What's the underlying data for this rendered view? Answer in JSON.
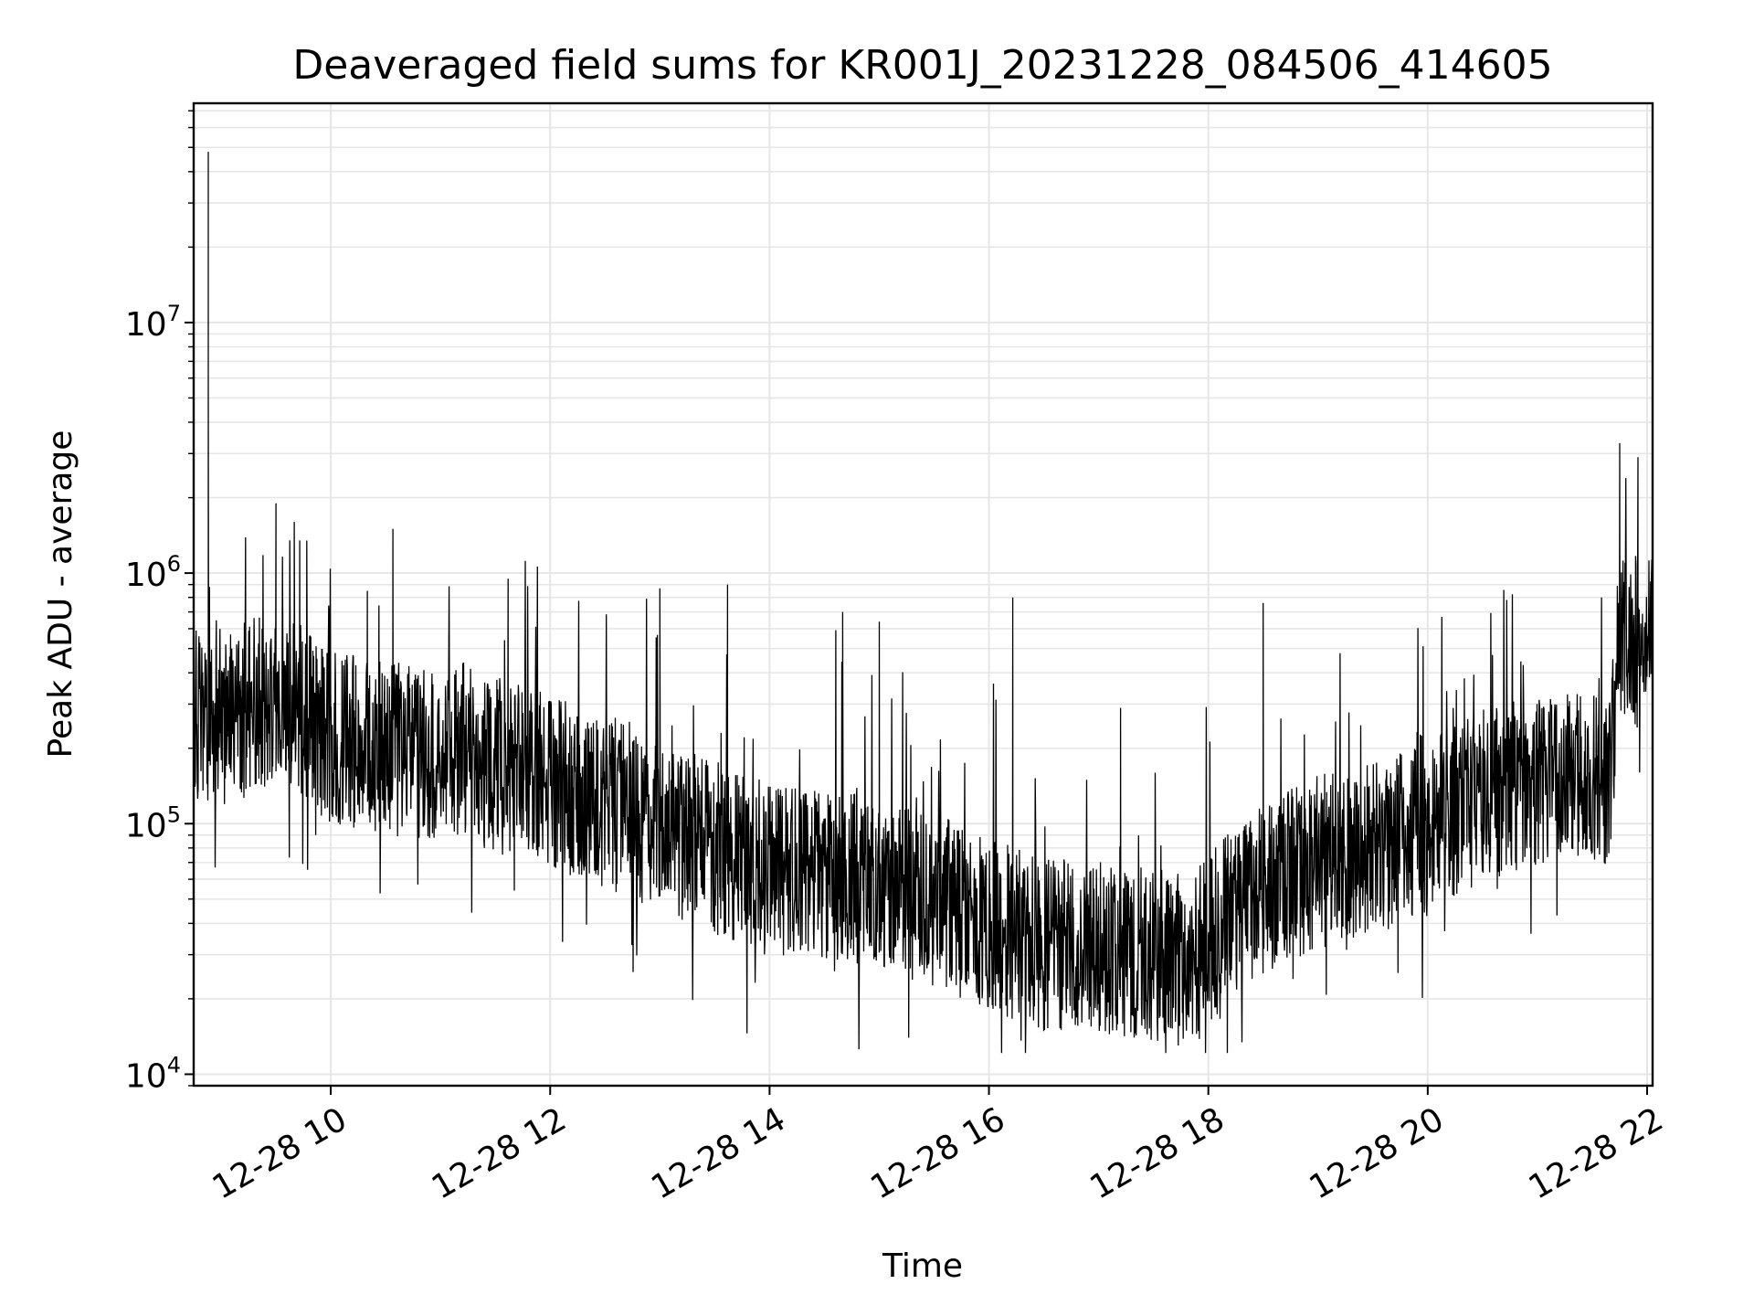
{
  "chart_data": {
    "type": "line",
    "title": "Deaveraged field sums for KR001J_20231228_084506_414605",
    "xlabel": "Time",
    "ylabel": "Peak ADU - average",
    "yscale": "log",
    "ylim": [
      9000,
      75000000
    ],
    "xlim": [
      "2023-12-28 08:45",
      "2023-12-28 22:03"
    ],
    "x_ticks": [
      "12-28 10",
      "12-28 12",
      "12-28 14",
      "12-28 16",
      "12-28 18",
      "12-28 20",
      "12-28 22"
    ],
    "y_ticks": [
      {
        "base": "10",
        "exp": "4",
        "value": 10000
      },
      {
        "base": "10",
        "exp": "5",
        "value": 100000
      },
      {
        "base": "10",
        "exp": "6",
        "value": 1000000
      },
      {
        "base": "10",
        "exp": "7",
        "value": 10000000
      }
    ],
    "grid": true,
    "line_color": "#000000",
    "grid_color": "#e6e6e6",
    "series": [
      {
        "x": [
          "2023-12-28 08:45",
          "2023-12-28 08:50",
          "2023-12-28 08:55",
          "2023-12-28 09:00",
          "2023-12-28 09:15",
          "2023-12-28 09:30",
          "2023-12-28 09:45",
          "2023-12-28 10:00",
          "2023-12-28 10:30",
          "2023-12-28 11:00",
          "2023-12-28 11:15",
          "2023-12-28 11:30",
          "2023-12-28 12:00",
          "2023-12-28 12:30",
          "2023-12-28 13:00",
          "2023-12-28 13:30",
          "2023-12-28 14:00",
          "2023-12-28 14:30",
          "2023-12-28 15:00",
          "2023-12-28 15:30",
          "2023-12-28 16:00",
          "2023-12-28 16:30",
          "2023-12-28 17:00",
          "2023-12-28 17:30",
          "2023-12-28 17:50",
          "2023-12-28 18:00",
          "2023-12-28 18:30",
          "2023-12-28 19:00",
          "2023-12-28 19:30",
          "2023-12-28 20:00",
          "2023-12-28 20:30",
          "2023-12-28 21:00",
          "2023-12-28 21:30",
          "2023-12-28 21:40",
          "2023-12-28 21:45",
          "2023-12-28 22:00",
          "2023-12-28 22:03"
        ],
        "values": [
          300000,
          250000,
          230000,
          280000,
          300000,
          310000,
          280000,
          220000,
          200000,
          190000,
          200000,
          170000,
          150000,
          120000,
          100000,
          80000,
          65000,
          60000,
          58000,
          50000,
          40000,
          33000,
          32000,
          30000,
          28000,
          35000,
          55000,
          70000,
          80000,
          95000,
          130000,
          150000,
          150000,
          150000,
          600000,
          500000,
          600000
        ]
      }
    ],
    "spikes": [
      {
        "x": "2023-12-28 08:53",
        "value": 48000000
      },
      {
        "x": "2023-12-28 08:53",
        "value": 6000000
      },
      {
        "x": "2023-12-28 09:30",
        "value": 1900000
      },
      {
        "x": "2023-12-28 09:40",
        "value": 1600000
      },
      {
        "x": "2023-12-28 09:43",
        "value": 1350000
      },
      {
        "x": "2023-12-28 10:20",
        "value": 850000
      },
      {
        "x": "2023-12-28 10:34",
        "value": 1500000
      },
      {
        "x": "2023-12-28 11:37",
        "value": 950000
      },
      {
        "x": "2023-12-28 13:00",
        "value": 870000
      },
      {
        "x": "2023-12-28 13:37",
        "value": 900000
      },
      {
        "x": "2023-12-28 14:40",
        "value": 700000
      },
      {
        "x": "2023-12-28 15:00",
        "value": 640000
      },
      {
        "x": "2023-12-28 16:13",
        "value": 800000
      },
      {
        "x": "2023-12-28 17:12",
        "value": 290000
      },
      {
        "x": "2023-12-28 18:30",
        "value": 760000
      },
      {
        "x": "2023-12-28 20:20",
        "value": 380000
      },
      {
        "x": "2023-12-28 21:45",
        "value": 3300000
      },
      {
        "x": "2023-12-28 21:55",
        "value": 2900000
      }
    ]
  }
}
